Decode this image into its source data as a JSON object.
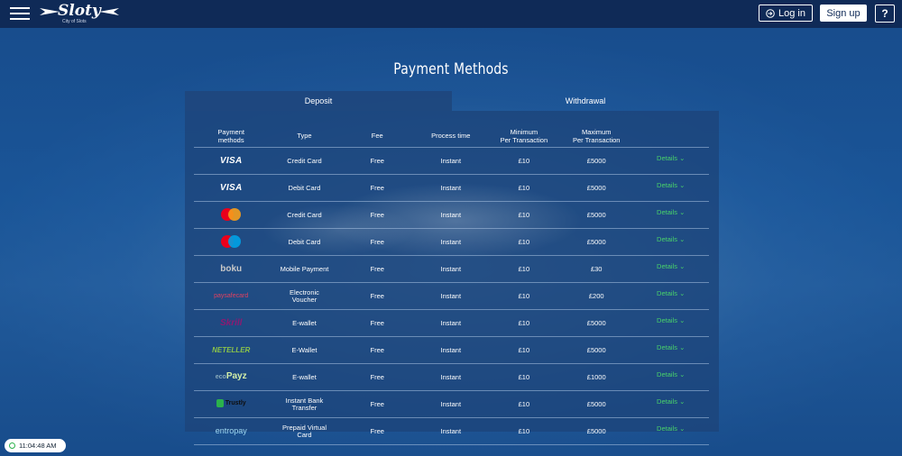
{
  "header": {
    "logo_text": "Sloty",
    "logo_sub": "City of Slots",
    "login_label": "Log in",
    "signup_label": "Sign up",
    "help_label": "?"
  },
  "page": {
    "title": "Payment Methods"
  },
  "tabs": [
    {
      "label": "Deposit",
      "active": true
    },
    {
      "label": "Withdrawal",
      "active": false
    }
  ],
  "table": {
    "headers": [
      "Payment methods",
      "Type",
      "Fee",
      "Process time",
      "Minimum Per Transaction",
      "Maximum Per Transaction",
      ""
    ],
    "details_label": "Details",
    "rows": [
      {
        "logo": "VISA",
        "logo_icon": "visa-logo",
        "type": "Credit Card",
        "fee": "Free",
        "process": "Instant",
        "min": "£10",
        "max": "£5000"
      },
      {
        "logo": "VISA",
        "logo_icon": "visa-electron-logo",
        "type": "Debit Card",
        "fee": "Free",
        "process": "Instant",
        "min": "£10",
        "max": "£5000"
      },
      {
        "logo": "",
        "logo_icon": "mastercard-logo",
        "type": "Credit Card",
        "fee": "Free",
        "process": "Instant",
        "min": "£10",
        "max": "£5000"
      },
      {
        "logo": "",
        "logo_icon": "maestro-logo",
        "type": "Debit Card",
        "fee": "Free",
        "process": "Instant",
        "min": "£10",
        "max": "£5000"
      },
      {
        "logo": "boku",
        "logo_icon": "boku-logo",
        "type": "Mobile Payment",
        "fee": "Free",
        "process": "Instant",
        "min": "£10",
        "max": "£30"
      },
      {
        "logo": "paysafecard",
        "logo_icon": "paysafecard-logo",
        "type": "Electronic Voucher",
        "fee": "Free",
        "process": "Instant",
        "min": "£10",
        "max": "£200"
      },
      {
        "logo": "Skrill",
        "logo_icon": "skrill-logo",
        "type": "E-wallet",
        "fee": "Free",
        "process": "Instant",
        "min": "£10",
        "max": "£5000"
      },
      {
        "logo": "NETELLER",
        "logo_icon": "neteller-logo",
        "type": "E-Wallet",
        "fee": "Free",
        "process": "Instant",
        "min": "£10",
        "max": "£5000"
      },
      {
        "logo": "Payz",
        "logo_icon": "ecopayz-logo",
        "type": "E-wallet",
        "fee": "Free",
        "process": "Instant",
        "min": "£10",
        "max": "£1000"
      },
      {
        "logo": "Trustly",
        "logo_icon": "trustly-logo",
        "type": "Instant Bank Transfer",
        "fee": "Free",
        "process": "Instant",
        "min": "£10",
        "max": "£5000"
      },
      {
        "logo": "entropay",
        "logo_icon": "entropay-logo",
        "type": "Prepaid Virtual Card",
        "fee": "Free",
        "process": "Instant",
        "min": "£10",
        "max": "£5000"
      }
    ]
  },
  "clock": {
    "time": "11:04:48 AM"
  },
  "colors": {
    "topbar": "#0f2a57",
    "details": "#49d36a"
  }
}
